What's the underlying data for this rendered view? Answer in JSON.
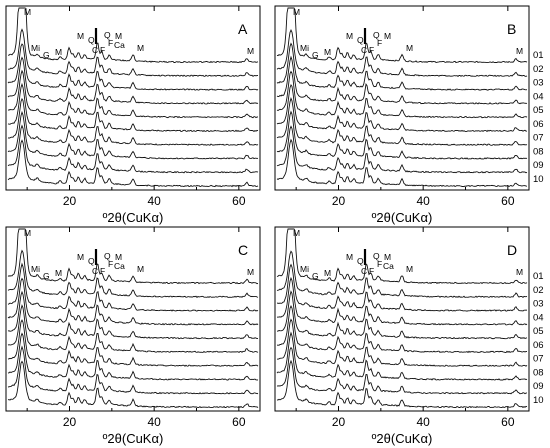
{
  "chart_data": [
    {
      "type": "line",
      "panel_letter": "A",
      "xlabel": "º2θ(CuKα)",
      "xlim": [
        5,
        65
      ],
      "x_ticks": [
        "20",
        "40",
        "60"
      ],
      "sample_labels": [],
      "peak_labels": [
        "M",
        "Mi",
        "G",
        "M",
        "M",
        "Q",
        "C",
        "F",
        "Q",
        "F",
        "Ca",
        "M",
        "M",
        "M"
      ],
      "n_patterns": 10,
      "peaks_2theta": [
        8.8,
        12.4,
        17.8,
        19.9,
        20.8,
        22.1,
        23.6,
        26.6,
        27.6,
        29.4,
        35.0,
        61.9
      ],
      "peaks_relative_intensity": [
        1.0,
        0.12,
        0.12,
        0.55,
        0.25,
        0.3,
        0.2,
        0.75,
        0.35,
        0.22,
        0.28,
        0.15
      ]
    },
    {
      "type": "line",
      "panel_letter": "B",
      "xlabel": "º2θ(CuKα)",
      "xlim": [
        5,
        65
      ],
      "x_ticks": [
        "20",
        "40",
        "60"
      ],
      "sample_labels": [
        "01",
        "02",
        "03",
        "04",
        "05",
        "06",
        "07",
        "08",
        "09",
        "10"
      ],
      "peak_labels": [
        "M",
        "Mi",
        "G",
        "M",
        "M",
        "Q",
        "C",
        "F",
        "Q",
        "F",
        "M",
        "M",
        "M"
      ],
      "n_patterns": 10,
      "peaks_2theta": [
        8.8,
        12.4,
        17.8,
        19.9,
        20.8,
        22.1,
        23.6,
        26.6,
        27.6,
        29.4,
        35.0,
        61.9
      ],
      "peaks_relative_intensity": [
        1.0,
        0.12,
        0.12,
        0.55,
        0.25,
        0.3,
        0.2,
        0.75,
        0.35,
        0.22,
        0.28,
        0.15
      ]
    },
    {
      "type": "line",
      "panel_letter": "C",
      "xlabel": "º2θ(CuKα)",
      "xlim": [
        5,
        65
      ],
      "x_ticks": [
        "20",
        "40",
        "60"
      ],
      "sample_labels": [],
      "peak_labels": [
        "M",
        "Mi",
        "G",
        "M",
        "M",
        "Q",
        "C",
        "F",
        "Q",
        "F",
        "Ca",
        "M",
        "M",
        "M"
      ],
      "n_patterns": 10,
      "peaks_2theta": [
        8.8,
        12.4,
        17.8,
        19.9,
        20.8,
        22.1,
        23.6,
        26.6,
        27.6,
        29.4,
        35.0,
        61.9
      ],
      "peaks_relative_intensity": [
        1.0,
        0.12,
        0.12,
        0.55,
        0.25,
        0.3,
        0.2,
        0.75,
        0.35,
        0.22,
        0.28,
        0.15
      ]
    },
    {
      "type": "line",
      "panel_letter": "D",
      "xlabel": "º2θ(CuKα)",
      "xlim": [
        5,
        65
      ],
      "x_ticks": [
        "20",
        "40",
        "60"
      ],
      "sample_labels": [
        "01",
        "02",
        "03",
        "04",
        "05",
        "06",
        "07",
        "08",
        "09",
        "10"
      ],
      "peak_labels": [
        "M",
        "Mi",
        "G",
        "M",
        "M",
        "Q",
        "C",
        "F",
        "Q",
        "F",
        "Ca",
        "M",
        "M",
        "M"
      ],
      "n_patterns": 10,
      "peaks_2theta": [
        8.8,
        12.4,
        17.8,
        19.9,
        20.8,
        22.1,
        23.6,
        26.6,
        27.6,
        29.4,
        35.0,
        61.9
      ],
      "peaks_relative_intensity": [
        1.0,
        0.12,
        0.12,
        0.55,
        0.25,
        0.3,
        0.2,
        0.75,
        0.35,
        0.22,
        0.28,
        0.15
      ]
    }
  ]
}
